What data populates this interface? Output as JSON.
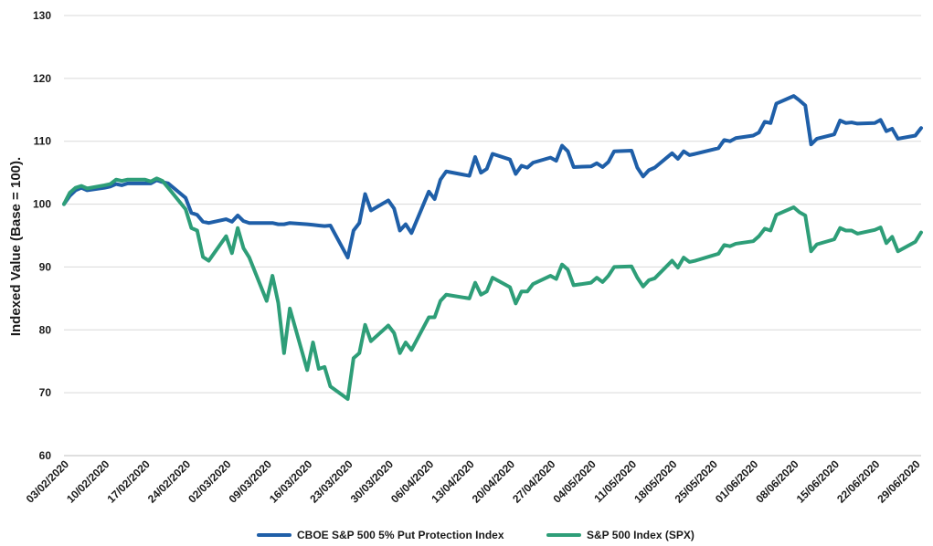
{
  "chart_data": {
    "type": "line",
    "ylabel": "Indexed Value (Base = 100).",
    "ylim": [
      60,
      130
    ],
    "yticks": [
      60,
      70,
      80,
      90,
      100,
      110,
      120,
      130
    ],
    "xlim": [
      "2020-02-03",
      "2020-06-30"
    ],
    "x_tick_labels": [
      "03/02/2020",
      "10/02/2020",
      "17/02/2020",
      "24/02/2020",
      "02/03/2020",
      "09/03/2020",
      "16/03/2020",
      "23/03/2020",
      "30/03/2020",
      "06/04/2020",
      "13/04/2020",
      "20/04/2020",
      "27/04/2020",
      "04/05/2020",
      "11/05/2020",
      "18/05/2020",
      "25/05/2020",
      "01/06/2020",
      "08/06/2020",
      "15/06/2020",
      "22/06/2020",
      "29/06/2020"
    ],
    "grid": "horizontal",
    "legend_position": "bottom",
    "series": [
      {
        "name": "CBOE S&P 500 5% Put Protection Index",
        "color": "#1f5fa8",
        "points": [
          [
            "2020-02-03",
            100.0
          ],
          [
            "2020-02-04",
            101.3
          ],
          [
            "2020-02-05",
            102.2
          ],
          [
            "2020-02-06",
            102.6
          ],
          [
            "2020-02-07",
            102.2
          ],
          [
            "2020-02-10",
            102.6
          ],
          [
            "2020-02-11",
            102.8
          ],
          [
            "2020-02-12",
            103.2
          ],
          [
            "2020-02-13",
            103.0
          ],
          [
            "2020-02-14",
            103.3
          ],
          [
            "2020-02-17",
            103.3
          ],
          [
            "2020-02-18",
            103.3
          ],
          [
            "2020-02-19",
            103.8
          ],
          [
            "2020-02-20",
            103.5
          ],
          [
            "2020-02-21",
            103.3
          ],
          [
            "2020-02-24",
            101.0
          ],
          [
            "2020-02-25",
            98.6
          ],
          [
            "2020-02-26",
            98.3
          ],
          [
            "2020-02-27",
            97.2
          ],
          [
            "2020-02-28",
            97.0
          ],
          [
            "2020-03-02",
            97.6
          ],
          [
            "2020-03-03",
            97.2
          ],
          [
            "2020-03-04",
            98.2
          ],
          [
            "2020-03-05",
            97.3
          ],
          [
            "2020-03-06",
            97.0
          ],
          [
            "2020-03-09",
            97.0
          ],
          [
            "2020-03-10",
            97.0
          ],
          [
            "2020-03-11",
            96.8
          ],
          [
            "2020-03-12",
            96.8
          ],
          [
            "2020-03-13",
            97.0
          ],
          [
            "2020-03-16",
            96.8
          ],
          [
            "2020-03-17",
            96.7
          ],
          [
            "2020-03-18",
            96.6
          ],
          [
            "2020-03-19",
            96.5
          ],
          [
            "2020-03-20",
            96.6
          ],
          [
            "2020-03-23",
            91.5
          ],
          [
            "2020-03-24",
            95.8
          ],
          [
            "2020-03-25",
            97.0
          ],
          [
            "2020-03-26",
            101.6
          ],
          [
            "2020-03-27",
            99.0
          ],
          [
            "2020-03-30",
            100.6
          ],
          [
            "2020-03-31",
            99.3
          ],
          [
            "2020-04-01",
            95.8
          ],
          [
            "2020-04-02",
            96.8
          ],
          [
            "2020-04-03",
            95.4
          ],
          [
            "2020-04-06",
            102.0
          ],
          [
            "2020-04-07",
            100.8
          ],
          [
            "2020-04-08",
            103.9
          ],
          [
            "2020-04-09",
            105.2
          ],
          [
            "2020-04-13",
            104.5
          ],
          [
            "2020-04-14",
            107.5
          ],
          [
            "2020-04-15",
            105.0
          ],
          [
            "2020-04-16",
            105.6
          ],
          [
            "2020-04-17",
            108.0
          ],
          [
            "2020-04-20",
            107.1
          ],
          [
            "2020-04-21",
            104.8
          ],
          [
            "2020-04-22",
            106.1
          ],
          [
            "2020-04-23",
            105.8
          ],
          [
            "2020-04-24",
            106.6
          ],
          [
            "2020-04-27",
            107.4
          ],
          [
            "2020-04-28",
            106.9
          ],
          [
            "2020-04-29",
            109.3
          ],
          [
            "2020-04-30",
            108.4
          ],
          [
            "2020-05-01",
            105.9
          ],
          [
            "2020-05-04",
            106.0
          ],
          [
            "2020-05-05",
            106.5
          ],
          [
            "2020-05-06",
            105.9
          ],
          [
            "2020-05-07",
            106.7
          ],
          [
            "2020-05-08",
            108.4
          ],
          [
            "2020-05-11",
            108.5
          ],
          [
            "2020-05-12",
            105.8
          ],
          [
            "2020-05-13",
            104.4
          ],
          [
            "2020-05-14",
            105.4
          ],
          [
            "2020-05-15",
            105.8
          ],
          [
            "2020-05-18",
            108.1
          ],
          [
            "2020-05-19",
            107.2
          ],
          [
            "2020-05-20",
            108.4
          ],
          [
            "2020-05-21",
            107.8
          ],
          [
            "2020-05-22",
            108.0
          ],
          [
            "2020-05-26",
            108.9
          ],
          [
            "2020-05-27",
            110.2
          ],
          [
            "2020-05-28",
            110.0
          ],
          [
            "2020-05-29",
            110.5
          ],
          [
            "2020-06-01",
            110.9
          ],
          [
            "2020-06-02",
            111.4
          ],
          [
            "2020-06-03",
            113.1
          ],
          [
            "2020-06-04",
            112.9
          ],
          [
            "2020-06-05",
            116.0
          ],
          [
            "2020-06-08",
            117.2
          ],
          [
            "2020-06-09",
            116.5
          ],
          [
            "2020-06-10",
            115.7
          ],
          [
            "2020-06-11",
            109.5
          ],
          [
            "2020-06-12",
            110.4
          ],
          [
            "2020-06-15",
            111.1
          ],
          [
            "2020-06-16",
            113.3
          ],
          [
            "2020-06-17",
            112.9
          ],
          [
            "2020-06-18",
            113.0
          ],
          [
            "2020-06-19",
            112.8
          ],
          [
            "2020-06-22",
            112.9
          ],
          [
            "2020-06-23",
            113.4
          ],
          [
            "2020-06-24",
            111.6
          ],
          [
            "2020-06-25",
            112.0
          ],
          [
            "2020-06-26",
            110.4
          ],
          [
            "2020-06-29",
            110.9
          ],
          [
            "2020-06-30",
            112.1
          ]
        ]
      },
      {
        "name": "S&P 500 Index (SPX)",
        "color": "#2e9e78",
        "points": [
          [
            "2020-02-03",
            100.0
          ],
          [
            "2020-02-04",
            101.8
          ],
          [
            "2020-02-05",
            102.6
          ],
          [
            "2020-02-06",
            102.9
          ],
          [
            "2020-02-07",
            102.5
          ],
          [
            "2020-02-10",
            103.0
          ],
          [
            "2020-02-11",
            103.2
          ],
          [
            "2020-02-12",
            103.9
          ],
          [
            "2020-02-13",
            103.7
          ],
          [
            "2020-02-14",
            103.9
          ],
          [
            "2020-02-17",
            103.9
          ],
          [
            "2020-02-18",
            103.6
          ],
          [
            "2020-02-19",
            104.1
          ],
          [
            "2020-02-20",
            103.7
          ],
          [
            "2020-02-21",
            102.6
          ],
          [
            "2020-02-24",
            99.2
          ],
          [
            "2020-02-25",
            96.2
          ],
          [
            "2020-02-26",
            95.8
          ],
          [
            "2020-02-27",
            91.6
          ],
          [
            "2020-02-28",
            91.0
          ],
          [
            "2020-03-02",
            94.9
          ],
          [
            "2020-03-03",
            92.2
          ],
          [
            "2020-03-04",
            96.2
          ],
          [
            "2020-03-05",
            93.0
          ],
          [
            "2020-03-06",
            91.5
          ],
          [
            "2020-03-09",
            84.6
          ],
          [
            "2020-03-10",
            88.6
          ],
          [
            "2020-03-11",
            84.3
          ],
          [
            "2020-03-12",
            76.3
          ],
          [
            "2020-03-13",
            83.4
          ],
          [
            "2020-03-16",
            73.6
          ],
          [
            "2020-03-17",
            78.0
          ],
          [
            "2020-03-18",
            73.8
          ],
          [
            "2020-03-19",
            74.1
          ],
          [
            "2020-03-20",
            71.0
          ],
          [
            "2020-03-23",
            69.0
          ],
          [
            "2020-03-24",
            75.5
          ],
          [
            "2020-03-25",
            76.3
          ],
          [
            "2020-03-26",
            80.8
          ],
          [
            "2020-03-27",
            78.2
          ],
          [
            "2020-03-30",
            80.7
          ],
          [
            "2020-03-31",
            79.5
          ],
          [
            "2020-04-01",
            76.3
          ],
          [
            "2020-04-02",
            78.0
          ],
          [
            "2020-04-03",
            76.8
          ],
          [
            "2020-04-06",
            82.0
          ],
          [
            "2020-04-07",
            82.0
          ],
          [
            "2020-04-08",
            84.6
          ],
          [
            "2020-04-09",
            85.6
          ],
          [
            "2020-04-13",
            85.0
          ],
          [
            "2020-04-14",
            87.5
          ],
          [
            "2020-04-15",
            85.6
          ],
          [
            "2020-04-16",
            86.1
          ],
          [
            "2020-04-17",
            88.3
          ],
          [
            "2020-04-20",
            86.8
          ],
          [
            "2020-04-21",
            84.2
          ],
          [
            "2020-04-22",
            86.1
          ],
          [
            "2020-04-23",
            86.1
          ],
          [
            "2020-04-24",
            87.3
          ],
          [
            "2020-04-27",
            88.6
          ],
          [
            "2020-04-28",
            88.1
          ],
          [
            "2020-04-29",
            90.4
          ],
          [
            "2020-04-30",
            89.6
          ],
          [
            "2020-05-01",
            87.1
          ],
          [
            "2020-05-04",
            87.5
          ],
          [
            "2020-05-05",
            88.3
          ],
          [
            "2020-05-06",
            87.6
          ],
          [
            "2020-05-07",
            88.6
          ],
          [
            "2020-05-08",
            90.0
          ],
          [
            "2020-05-11",
            90.1
          ],
          [
            "2020-05-12",
            88.3
          ],
          [
            "2020-05-13",
            86.9
          ],
          [
            "2020-05-14",
            87.9
          ],
          [
            "2020-05-15",
            88.2
          ],
          [
            "2020-05-18",
            91.0
          ],
          [
            "2020-05-19",
            89.9
          ],
          [
            "2020-05-20",
            91.5
          ],
          [
            "2020-05-21",
            90.8
          ],
          [
            "2020-05-22",
            91.0
          ],
          [
            "2020-05-26",
            92.1
          ],
          [
            "2020-05-27",
            93.5
          ],
          [
            "2020-05-28",
            93.3
          ],
          [
            "2020-05-29",
            93.7
          ],
          [
            "2020-06-01",
            94.1
          ],
          [
            "2020-06-02",
            94.9
          ],
          [
            "2020-06-03",
            96.1
          ],
          [
            "2020-06-04",
            95.8
          ],
          [
            "2020-06-05",
            98.3
          ],
          [
            "2020-06-08",
            99.5
          ],
          [
            "2020-06-09",
            98.7
          ],
          [
            "2020-06-10",
            98.2
          ],
          [
            "2020-06-11",
            92.5
          ],
          [
            "2020-06-12",
            93.6
          ],
          [
            "2020-06-15",
            94.4
          ],
          [
            "2020-06-16",
            96.2
          ],
          [
            "2020-06-17",
            95.8
          ],
          [
            "2020-06-18",
            95.8
          ],
          [
            "2020-06-19",
            95.3
          ],
          [
            "2020-06-22",
            95.9
          ],
          [
            "2020-06-23",
            96.3
          ],
          [
            "2020-06-24",
            93.8
          ],
          [
            "2020-06-25",
            94.8
          ],
          [
            "2020-06-26",
            92.5
          ],
          [
            "2020-06-29",
            94.0
          ],
          [
            "2020-06-30",
            95.5
          ]
        ]
      }
    ]
  }
}
